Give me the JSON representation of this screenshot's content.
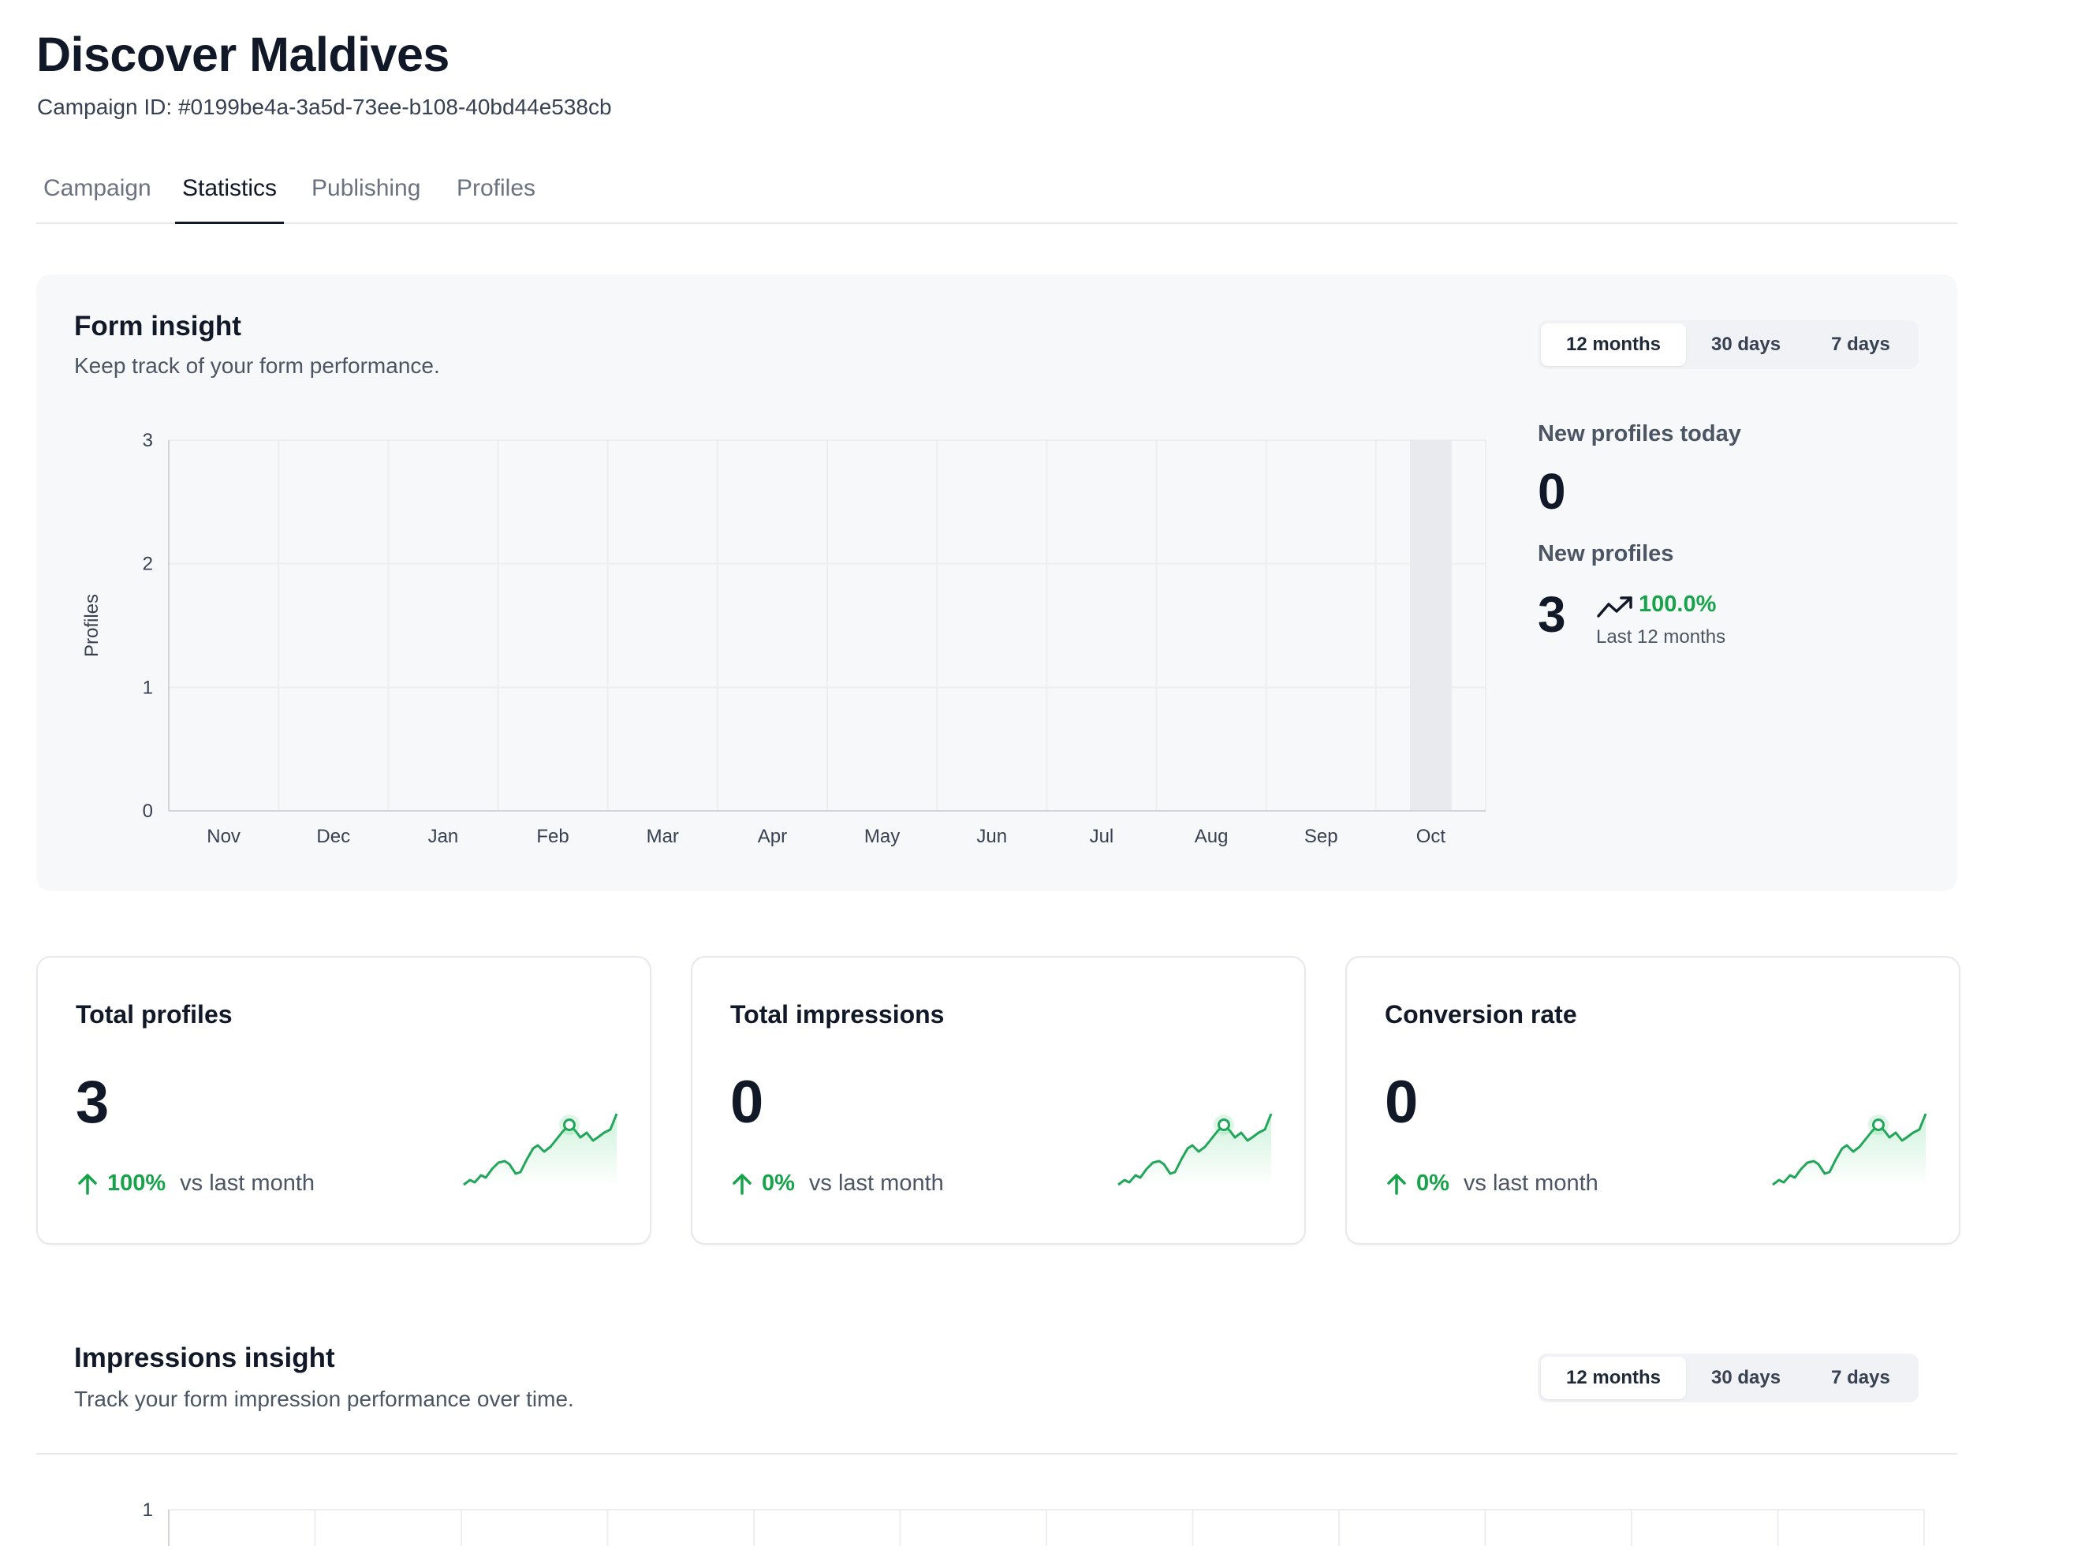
{
  "header": {
    "title": "Discover Maldives",
    "campaign_id": "Campaign ID: #0199be4a-3a5d-73ee-b108-40bd44e538cb"
  },
  "tabs": [
    {
      "label": "Campaign",
      "active": false
    },
    {
      "label": "Statistics",
      "active": true
    },
    {
      "label": "Publishing",
      "active": false
    },
    {
      "label": "Profiles",
      "active": false
    }
  ],
  "form_insight": {
    "title": "Form insight",
    "subtitle": "Keep track of your form performance.",
    "ranges": [
      "12 months",
      "30 days",
      "7 days"
    ],
    "active_range": "12 months",
    "new_profiles_today_label": "New profiles today",
    "new_profiles_today_value": "0",
    "new_profiles_label": "New profiles",
    "new_profiles_value": "3",
    "trend_pct": "100.0%",
    "trend_period": "Last 12 months",
    "trend_icon": "trending-up-icon"
  },
  "chart_data": {
    "type": "bar",
    "categories": [
      "Nov",
      "Dec",
      "Jan",
      "Feb",
      "Mar",
      "Apr",
      "May",
      "Jun",
      "Jul",
      "Aug",
      "Sep",
      "Oct"
    ],
    "values": [
      0,
      0,
      0,
      0,
      0,
      0,
      0,
      0,
      0,
      0,
      0,
      3
    ],
    "ylabel": "Profiles",
    "ylim": [
      0,
      3
    ],
    "yticks": [
      0,
      1,
      2,
      3
    ],
    "grid": true,
    "bar_color": "#e9eaee"
  },
  "cards": [
    {
      "title": "Total profiles",
      "value": "3",
      "delta": "100%",
      "vs": "vs last month"
    },
    {
      "title": "Total impressions",
      "value": "0",
      "delta": "0%",
      "vs": "vs last month"
    },
    {
      "title": "Conversion rate",
      "value": "0",
      "delta": "0%",
      "vs": "vs last month"
    }
  ],
  "impressions_insight": {
    "title": "Impressions insight",
    "subtitle": "Track your form impression performance over time.",
    "ranges": [
      "12 months",
      "30 days",
      "7 days"
    ],
    "active_range": "12 months",
    "ytick_top": "1"
  },
  "colors": {
    "accent_green": "#16a34a",
    "text_dark": "#111827",
    "panel_bg": "#f7f8fa"
  }
}
